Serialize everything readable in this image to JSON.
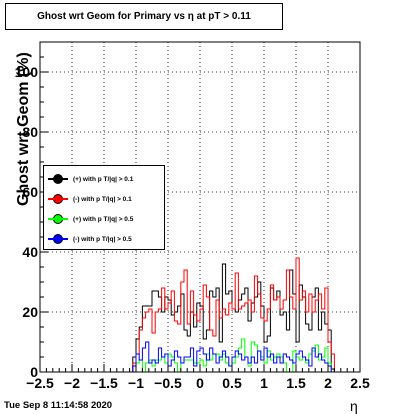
{
  "chart_data": {
    "type": "histogram",
    "title": "Ghost wrt Geom for Primary vs   η at pT > 0.11",
    "xlabel": "η",
    "ylabel": "Ghost wrt Geom (%)",
    "xlim": [
      -2.5,
      2.5
    ],
    "ylim": [
      0,
      110
    ],
    "x_ticks": [
      "−2.5",
      "−2",
      "−1.5",
      "−1",
      "−0.5",
      "0",
      "0.5",
      "1",
      "1.5",
      "2",
      "2.5"
    ],
    "y_ticks": [
      "0",
      "20",
      "40",
      "60",
      "80",
      "100"
    ],
    "grid": true,
    "bin_width": 0.05,
    "x_start": -1.1,
    "legend_position": "left",
    "series": [
      {
        "name": "(+) with p T/|q| > 0.1",
        "color": "#000000",
        "values": [
          0,
          5,
          11,
          15,
          22,
          22,
          22,
          27,
          27,
          25,
          20,
          25,
          24,
          19,
          20,
          22,
          26,
          14,
          12,
          20,
          15,
          23,
          22,
          11,
          14,
          27,
          25,
          28,
          10,
          36,
          26,
          27,
          21,
          20,
          24,
          26,
          28,
          17,
          23,
          25,
          30,
          22,
          10,
          12,
          28,
          24,
          27,
          19,
          20,
          14,
          34,
          26,
          10,
          29,
          25,
          16,
          14,
          25,
          28,
          14,
          20,
          16,
          14,
          1,
          0
        ]
      },
      {
        "name": "(-) with p T/|q| > 0.1",
        "color": "#ff0000",
        "values": [
          0,
          3,
          6,
          14,
          18,
          20,
          21,
          13,
          20,
          21,
          28,
          21,
          23,
          27,
          17,
          16,
          30,
          34,
          16,
          27,
          19,
          17,
          21,
          29,
          25,
          14,
          12,
          24,
          18,
          21,
          19,
          23,
          21,
          33,
          21,
          22,
          23,
          24,
          20,
          32,
          26,
          18,
          17,
          21,
          29,
          24,
          25,
          21,
          24,
          34,
          25,
          21,
          38,
          24,
          27,
          20,
          26,
          20,
          24,
          26,
          21,
          28,
          10,
          6,
          0
        ]
      },
      {
        "name": "(+) with p T/|q| > 0.5",
        "color": "#00ff00",
        "values": [
          0,
          0,
          3,
          4,
          0,
          3,
          4,
          2,
          4,
          4,
          5,
          3,
          6,
          5,
          3,
          0,
          3,
          4,
          4,
          4,
          3,
          3,
          4,
          2,
          6,
          4,
          6,
          6,
          4,
          6,
          3,
          2,
          3,
          5,
          8,
          11,
          5,
          2,
          10,
          9,
          7,
          5,
          3,
          7,
          4,
          5,
          6,
          5,
          3,
          0,
          0,
          7,
          5,
          4,
          5,
          3,
          6,
          7,
          9,
          4,
          5,
          8,
          3,
          0,
          0
        ]
      },
      {
        "name": "(-) with p T/|q| > 0.5",
        "color": "#0000ff",
        "values": [
          0,
          2,
          6,
          4,
          8,
          10,
          3,
          4,
          3,
          8,
          5,
          6,
          2,
          4,
          7,
          5,
          3,
          5,
          5,
          8,
          2,
          7,
          8,
          6,
          4,
          8,
          6,
          3,
          5,
          7,
          5,
          2,
          5,
          7,
          6,
          4,
          5,
          3,
          5,
          3,
          7,
          4,
          8,
          5,
          6,
          3,
          5,
          3,
          6,
          5,
          4,
          3,
          6,
          7,
          5,
          4,
          2,
          8,
          5,
          6,
          4,
          3,
          2,
          0,
          0
        ]
      }
    ]
  },
  "timestamp": "Tue Sep  8 11:14:58 2020"
}
